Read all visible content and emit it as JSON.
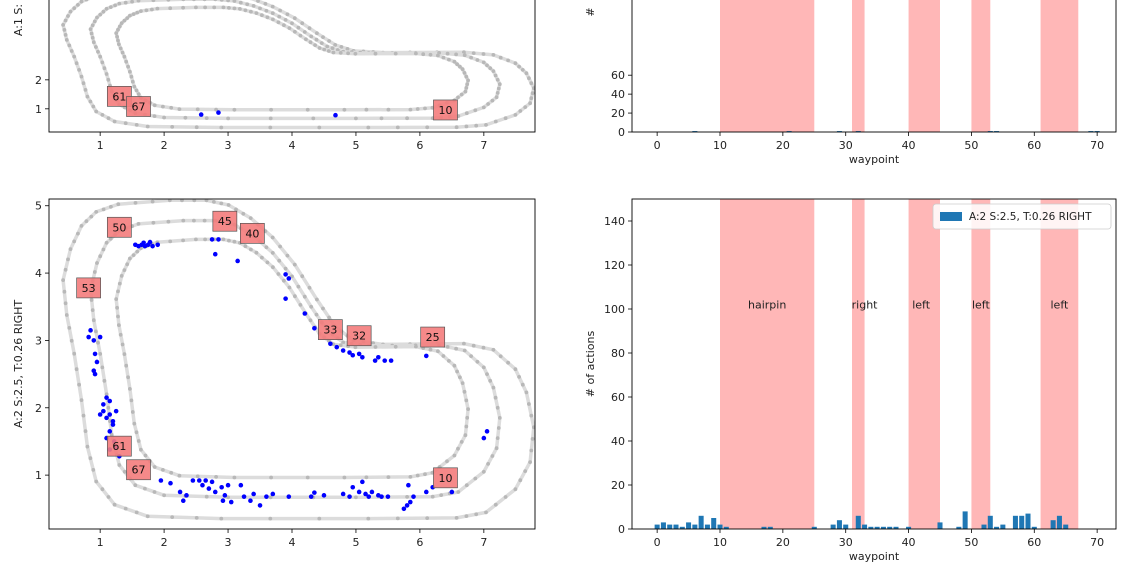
{
  "chart_data": [
    {
      "type": "scatter",
      "panel": "track-top",
      "ylabel": "A:1 S:",
      "xlim": [
        0.2,
        7.8
      ],
      "ylim": [
        0.2,
        5.1
      ],
      "xticks": [
        1,
        2,
        3,
        4,
        5,
        6,
        7
      ],
      "yticks": [
        1,
        2
      ],
      "waypoint_labels": [
        {
          "text": "61",
          "x": 1.3,
          "y": 1.43
        },
        {
          "text": "67",
          "x": 1.6,
          "y": 1.08
        },
        {
          "text": "10",
          "x": 6.4,
          "y": 0.96
        }
      ],
      "action_points": [
        [
          2.58,
          0.8
        ],
        [
          2.85,
          0.87
        ],
        [
          4.68,
          0.78
        ]
      ]
    },
    {
      "type": "bar",
      "panel": "hist-top",
      "xlabel": "waypoint",
      "ylabel": "#",
      "xlim": [
        -4,
        73
      ],
      "ylim": [
        0,
        150
      ],
      "xticks": [
        0,
        10,
        20,
        30,
        40,
        50,
        60,
        70
      ],
      "yticks": [
        0,
        20,
        40,
        60
      ],
      "shaded_regions": [
        [
          10,
          25
        ],
        [
          31,
          33
        ],
        [
          40,
          45
        ],
        [
          50,
          53
        ],
        [
          61,
          67
        ]
      ],
      "bars": [
        [
          6,
          1
        ],
        [
          21,
          1
        ],
        [
          29,
          1
        ],
        [
          32,
          1
        ],
        [
          53,
          1
        ],
        [
          54,
          1
        ],
        [
          69,
          1
        ],
        [
          70,
          1
        ]
      ]
    },
    {
      "type": "scatter",
      "panel": "track-bottom",
      "ylabel": "A:2 S:2.5, T:0.26 RIGHT",
      "xlim": [
        0.2,
        7.8
      ],
      "ylim": [
        0.2,
        5.1
      ],
      "xticks": [
        1,
        2,
        3,
        4,
        5,
        6,
        7
      ],
      "yticks": [
        1,
        2,
        3,
        4,
        5
      ],
      "waypoint_labels": [
        {
          "text": "50",
          "x": 1.3,
          "y": 4.68
        },
        {
          "text": "45",
          "x": 2.95,
          "y": 4.77
        },
        {
          "text": "40",
          "x": 3.38,
          "y": 4.59
        },
        {
          "text": "53",
          "x": 0.82,
          "y": 3.78
        },
        {
          "text": "33",
          "x": 4.6,
          "y": 3.16
        },
        {
          "text": "32",
          "x": 5.05,
          "y": 3.07
        },
        {
          "text": "25",
          "x": 6.2,
          "y": 3.05
        },
        {
          "text": "61",
          "x": 1.3,
          "y": 1.43
        },
        {
          "text": "67",
          "x": 1.6,
          "y": 1.08
        },
        {
          "text": "10",
          "x": 6.4,
          "y": 0.96
        }
      ],
      "action_points": [
        [
          1.55,
          4.42
        ],
        [
          1.6,
          4.4
        ],
        [
          1.65,
          4.42
        ],
        [
          1.7,
          4.4
        ],
        [
          1.75,
          4.42
        ],
        [
          1.82,
          4.4
        ],
        [
          1.9,
          4.42
        ],
        [
          1.68,
          4.45
        ],
        [
          1.78,
          4.46
        ],
        [
          2.75,
          4.5
        ],
        [
          2.85,
          4.5
        ],
        [
          2.8,
          4.28
        ],
        [
          3.15,
          4.18
        ],
        [
          3.9,
          3.98
        ],
        [
          3.95,
          3.92
        ],
        [
          3.9,
          3.62
        ],
        [
          4.2,
          3.4
        ],
        [
          4.35,
          3.18
        ],
        [
          4.6,
          2.95
        ],
        [
          4.7,
          2.9
        ],
        [
          4.8,
          2.85
        ],
        [
          4.9,
          2.82
        ],
        [
          4.95,
          2.78
        ],
        [
          5.05,
          2.8
        ],
        [
          5.1,
          2.75
        ],
        [
          5.3,
          2.7
        ],
        [
          5.35,
          2.75
        ],
        [
          5.45,
          2.7
        ],
        [
          5.55,
          2.7
        ],
        [
          6.1,
          2.77
        ],
        [
          0.85,
          3.15
        ],
        [
          0.82,
          3.05
        ],
        [
          0.9,
          3.0
        ],
        [
          0.92,
          2.8
        ],
        [
          0.95,
          2.68
        ],
        [
          0.9,
          2.55
        ],
        [
          0.92,
          2.5
        ],
        [
          1.0,
          3.05
        ],
        [
          1.05,
          2.05
        ],
        [
          1.1,
          2.15
        ],
        [
          1.15,
          2.1
        ],
        [
          1.05,
          1.95
        ],
        [
          1.1,
          1.85
        ],
        [
          1.15,
          1.9
        ],
        [
          1.2,
          1.8
        ],
        [
          1.25,
          1.95
        ],
        [
          1.2,
          1.75
        ],
        [
          1.15,
          1.65
        ],
        [
          1.1,
          1.55
        ],
        [
          1.22,
          1.5
        ],
        [
          1.15,
          1.38
        ],
        [
          1.25,
          1.42
        ],
        [
          1.3,
          1.28
        ],
        [
          1.0,
          1.9
        ],
        [
          1.95,
          0.92
        ],
        [
          2.1,
          0.88
        ],
        [
          2.25,
          0.75
        ],
        [
          2.35,
          0.7
        ],
        [
          2.3,
          0.62
        ],
        [
          2.45,
          0.92
        ],
        [
          2.55,
          0.92
        ],
        [
          2.6,
          0.85
        ],
        [
          2.65,
          0.92
        ],
        [
          2.7,
          0.8
        ],
        [
          2.75,
          0.9
        ],
        [
          2.8,
          0.75
        ],
        [
          2.9,
          0.82
        ],
        [
          2.95,
          0.7
        ],
        [
          3.0,
          0.85
        ],
        [
          2.92,
          0.62
        ],
        [
          3.05,
          0.6
        ],
        [
          3.2,
          0.85
        ],
        [
          3.25,
          0.68
        ],
        [
          3.35,
          0.62
        ],
        [
          3.4,
          0.72
        ],
        [
          3.5,
          0.55
        ],
        [
          3.6,
          0.68
        ],
        [
          3.7,
          0.72
        ],
        [
          3.95,
          0.68
        ],
        [
          4.3,
          0.68
        ],
        [
          4.35,
          0.74
        ],
        [
          4.5,
          0.7
        ],
        [
          4.8,
          0.72
        ],
        [
          4.9,
          0.68
        ],
        [
          4.95,
          0.82
        ],
        [
          5.05,
          0.75
        ],
        [
          5.1,
          0.9
        ],
        [
          5.15,
          0.72
        ],
        [
          5.2,
          0.68
        ],
        [
          5.25,
          0.75
        ],
        [
          5.35,
          0.7
        ],
        [
          5.4,
          0.68
        ],
        [
          5.5,
          0.68
        ],
        [
          5.75,
          0.5
        ],
        [
          5.8,
          0.55
        ],
        [
          5.85,
          0.6
        ],
        [
          5.82,
          0.85
        ],
        [
          5.9,
          0.68
        ],
        [
          6.1,
          0.75
        ],
        [
          6.2,
          0.82
        ],
        [
          6.5,
          0.75
        ],
        [
          7.0,
          1.55
        ],
        [
          7.05,
          1.65
        ]
      ]
    },
    {
      "type": "bar",
      "panel": "hist-bottom",
      "xlabel": "waypoint",
      "ylabel": "# of actions",
      "xlim": [
        -4,
        73
      ],
      "ylim": [
        0,
        150
      ],
      "xticks": [
        0,
        10,
        20,
        30,
        40,
        50,
        60,
        70
      ],
      "yticks": [
        0,
        20,
        40,
        60,
        80,
        100,
        120,
        140
      ],
      "legend": "A:2 S:2.5, T:0.26 RIGHT",
      "legend_position": "top-right",
      "shaded_regions": [
        [
          10,
          25
        ],
        [
          31,
          33
        ],
        [
          40,
          45
        ],
        [
          50,
          53
        ],
        [
          61,
          67
        ]
      ],
      "region_labels": [
        {
          "text": "hairpin",
          "x": 17.5
        },
        {
          "text": "right",
          "x": 33
        },
        {
          "text": "left",
          "x": 42
        },
        {
          "text": "left",
          "x": 51.5
        },
        {
          "text": "left",
          "x": 64
        }
      ],
      "region_label_y": 102,
      "bars": [
        [
          0,
          2
        ],
        [
          1,
          3
        ],
        [
          2,
          2
        ],
        [
          3,
          2
        ],
        [
          4,
          1
        ],
        [
          5,
          3
        ],
        [
          6,
          2
        ],
        [
          7,
          6
        ],
        [
          8,
          2
        ],
        [
          9,
          5
        ],
        [
          10,
          2
        ],
        [
          11,
          1
        ],
        [
          17,
          1
        ],
        [
          18,
          1
        ],
        [
          25,
          1
        ],
        [
          28,
          2
        ],
        [
          29,
          4
        ],
        [
          30,
          2
        ],
        [
          32,
          6
        ],
        [
          33,
          2
        ],
        [
          34,
          1
        ],
        [
          35,
          1
        ],
        [
          36,
          1
        ],
        [
          37,
          1
        ],
        [
          38,
          1
        ],
        [
          40,
          1
        ],
        [
          45,
          3
        ],
        [
          48,
          1
        ],
        [
          49,
          8
        ],
        [
          52,
          2
        ],
        [
          53,
          6
        ],
        [
          54,
          1
        ],
        [
          55,
          2
        ],
        [
          57,
          6
        ],
        [
          58,
          6
        ],
        [
          59,
          7
        ],
        [
          60,
          1
        ],
        [
          63,
          4
        ],
        [
          64,
          6
        ],
        [
          65,
          2
        ]
      ]
    }
  ],
  "colors": {
    "track": "#dcdcdc",
    "waypoint_marker": "#b8b8b8",
    "action_point": "#0000ff",
    "bar": "#1f77b4",
    "shade": "#ffb3b3",
    "label_box": "#f47c7c"
  }
}
